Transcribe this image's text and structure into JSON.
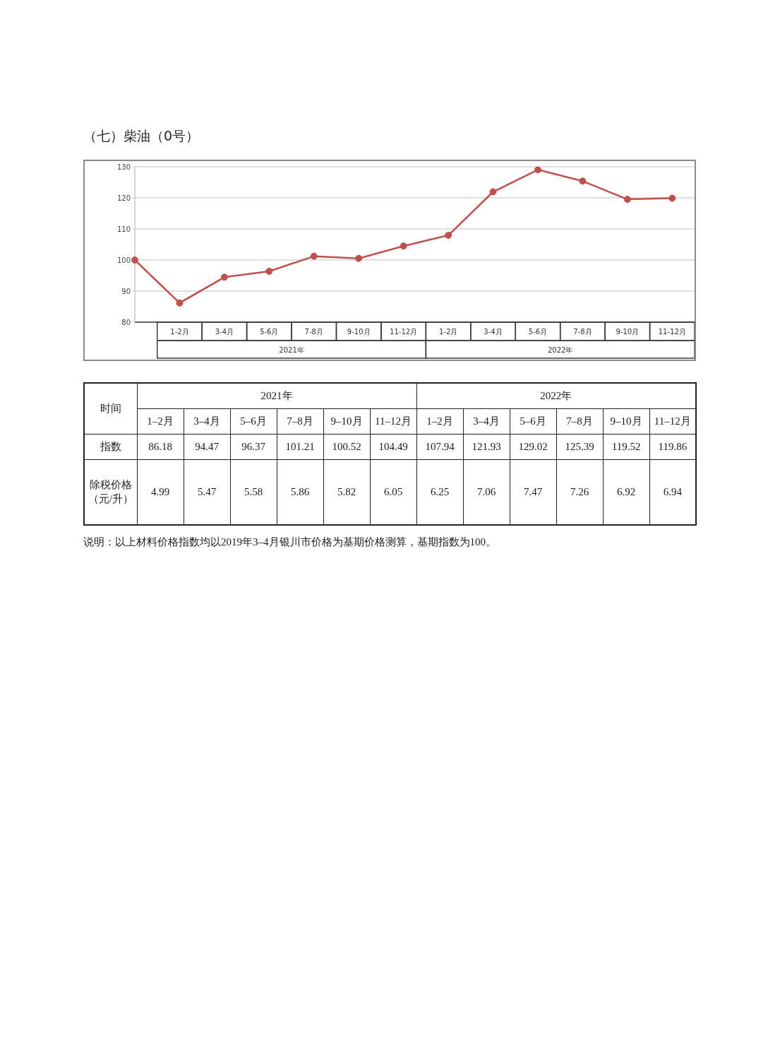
{
  "chart_data": [
    {
      "type": "line",
      "title": "（七）柴油（0号）",
      "categories": [
        null,
        "1-2月",
        "3-4月",
        "5-6月",
        "7-8月",
        "9-10月",
        "11-12月",
        "1-2月",
        "3-4月",
        "5-6月",
        "7-8月",
        "9-10月",
        "11-12月"
      ],
      "values": [
        100,
        86.18,
        94.47,
        96.37,
        101.21,
        100.52,
        104.49,
        107.94,
        121.93,
        129.02,
        125.39,
        119.52,
        119.86
      ],
      "color": "#c0504d",
      "ylim": [
        80,
        130
      ],
      "yticks": [
        80,
        90,
        100,
        110,
        120,
        130
      ],
      "grid": "y",
      "marker": "circle",
      "annotations": [
        "2021年",
        "2022年"
      ]
    },
    {
      "type": "other",
      "xlabel": "时间",
      "categories": [
        "1–2月",
        "3–4月",
        "5–6月",
        "7–8月",
        "9–10月",
        "11–12月",
        "1–2月",
        "3–4月",
        "5–6月",
        "7–8月",
        "9–10月",
        "11–12月"
      ],
      "series": [
        {
          "name": "指数",
          "values": [
            86.18,
            94.47,
            96.37,
            101.21,
            100.52,
            104.49,
            107.94,
            121.93,
            129.02,
            125.39,
            119.52,
            119.86
          ]
        },
        {
          "name": "除税价格（元/升）",
          "values": [
            4.99,
            5.47,
            5.58,
            5.86,
            5.82,
            6.05,
            6.25,
            7.06,
            7.47,
            7.26,
            6.92,
            6.94
          ]
        }
      ],
      "data_labels": true,
      "annotations": [
        "2021年",
        "2022年",
        "说明：以上材料价格指数均以2019年3–4月银川市价格为基期价格测算，基期指数为100。"
      ]
    }
  ]
}
